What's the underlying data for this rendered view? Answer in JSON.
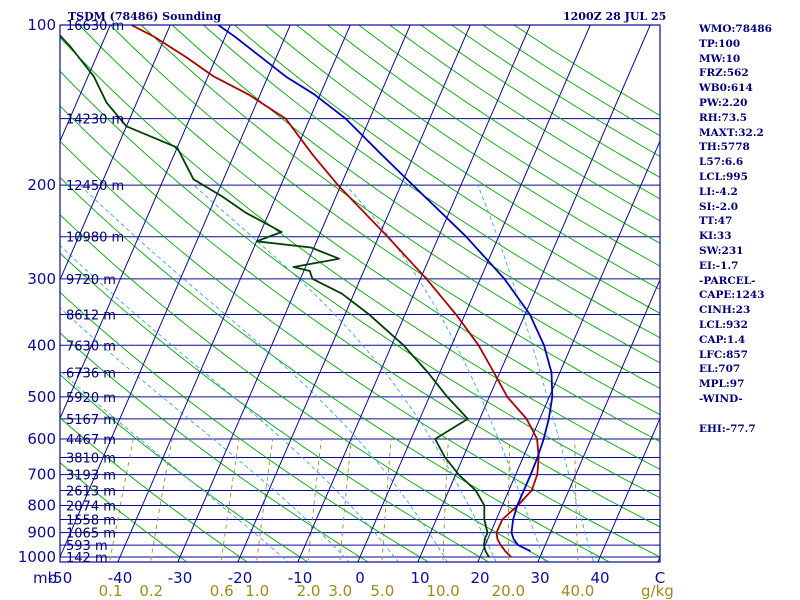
{
  "header": {
    "title": "TSDM (78486) Sounding",
    "time": "1200Z 28 JUL 25"
  },
  "indices": [
    "WMO:78486",
    "TP:100",
    "MW:10",
    "FRZ:562",
    "WB0:614",
    "PW:2.20",
    "RH:73.5",
    "MAXT:32.2",
    "TH:5778",
    "L57:6.6",
    "LCL:995",
    "LI:-4.2",
    "SI:-2.0",
    "TT:47",
    "KI:33",
    "SW:231",
    "EI:-1.7",
    "-PARCEL-",
    "CAPE:1243",
    "CINH:23",
    "LCL:932",
    "CAP:1.4",
    "LFC:857",
    "EL:707",
    "MPL:97",
    "-WIND-",
    "",
    "EHI:-77.7"
  ],
  "colors": {
    "frame": "#0a0a9a",
    "isobar": "#0a0a9a",
    "isotherm": "#0a0a9a",
    "dry_adiabat": "#00aa00",
    "moist_adiabat": "#3aa8d8",
    "mixing_ratio": "#a08a1a",
    "temperature": "#b00000",
    "dewpoint": "#004000",
    "parcel": "#0000c0"
  },
  "chart_data": {
    "type": "line",
    "title": "TSDM (78486) Sounding",
    "subtitle": "1200Z 28 JUL 25",
    "x_axis_unit_label": "mb",
    "mixing_ratio_unit": "g/kg",
    "pressure_ticks": [
      {
        "label": "100",
        "p": 100
      },
      {
        "label": "200",
        "p": 200
      },
      {
        "label": "300",
        "p": 300
      },
      {
        "label": "400",
        "p": 400
      },
      {
        "label": "500",
        "p": 500
      },
      {
        "label": "600",
        "p": 600
      },
      {
        "label": "700",
        "p": 700
      },
      {
        "label": "800",
        "p": 800
      },
      {
        "label": "900",
        "p": 900
      },
      {
        "label": "1000",
        "p": 1000
      }
    ],
    "height_labels": [
      {
        "p": 100,
        "label": "16630 m"
      },
      {
        "p": 150,
        "label": "14230 m"
      },
      {
        "p": 200,
        "label": "12450 m"
      },
      {
        "p": 250,
        "label": "10980 m"
      },
      {
        "p": 300,
        "label": "9720 m"
      },
      {
        "p": 350,
        "label": "8612 m"
      },
      {
        "p": 400,
        "label": "7630 m"
      },
      {
        "p": 450,
        "label": "6736 m"
      },
      {
        "p": 500,
        "label": "5920 m"
      },
      {
        "p": 550,
        "label": "5167 m"
      },
      {
        "p": 600,
        "label": "4467 m"
      },
      {
        "p": 650,
        "label": "3810 m"
      },
      {
        "p": 700,
        "label": "3193 m"
      },
      {
        "p": 750,
        "label": "2613 m"
      },
      {
        "p": 800,
        "label": "2074 m"
      },
      {
        "p": 850,
        "label": "1558 m"
      },
      {
        "p": 900,
        "label": "1065 m"
      },
      {
        "p": 950,
        "label": "593 m"
      },
      {
        "p": 1000,
        "label": "142 m"
      }
    ],
    "temperature_ticks": [
      {
        "label": "-50",
        "t": -50
      },
      {
        "label": "-40",
        "t": -40
      },
      {
        "label": "-30",
        "t": -30
      },
      {
        "label": "-20",
        "t": -20
      },
      {
        "label": "-10",
        "t": -10
      },
      {
        "label": "0",
        "t": 0
      },
      {
        "label": "10",
        "t": 10
      },
      {
        "label": "20",
        "t": 20
      },
      {
        "label": "30",
        "t": 30
      },
      {
        "label": "40",
        "t": 40
      },
      {
        "label": "C",
        "t": 50
      }
    ],
    "mixing_ratio_ticks": [
      {
        "label": "0.1",
        "w": 0.1
      },
      {
        "label": "0.2",
        "w": 0.2
      },
      {
        "label": "0.6",
        "w": 0.6
      },
      {
        "label": "1.0",
        "w": 1.0
      },
      {
        "label": "2.0",
        "w": 2.0
      },
      {
        "label": "3.0",
        "w": 3.0
      },
      {
        "label": "5.0",
        "w": 5.0
      },
      {
        "label": "10.0",
        "w": 10.0
      },
      {
        "label": "20.0",
        "w": 20.0
      },
      {
        "label": "40.0",
        "w": 40.0
      }
    ],
    "pressure_range_hpa": [
      100,
      1050
    ],
    "temperature_range_c_at_bottom": [
      -50,
      50
    ],
    "series": [
      {
        "key": "temperature",
        "points": [
          [
            1000,
            25.2
          ],
          [
            975,
            23.8
          ],
          [
            950,
            22.6
          ],
          [
            925,
            21.6
          ],
          [
            900,
            21.0
          ],
          [
            850,
            21.0
          ],
          [
            800,
            22.6
          ],
          [
            750,
            23.8
          ],
          [
            700,
            23.6
          ],
          [
            650,
            22.6
          ],
          [
            600,
            21.0
          ],
          [
            550,
            17.8
          ],
          [
            500,
            13.0
          ],
          [
            450,
            9.0
          ],
          [
            400,
            4.5
          ],
          [
            350,
            -1.5
          ],
          [
            300,
            -9.0
          ],
          [
            250,
            -18.5
          ],
          [
            200,
            -30.5
          ],
          [
            175,
            -37.0
          ],
          [
            150,
            -44.0
          ],
          [
            135,
            -52.0
          ],
          [
            125,
            -59.0
          ],
          [
            115,
            -65.0
          ],
          [
            105,
            -72.0
          ],
          [
            100,
            -76.5
          ]
        ]
      },
      {
        "key": "dewpoint",
        "points": [
          [
            1000,
            21.5
          ],
          [
            975,
            20.5
          ],
          [
            950,
            19.8
          ],
          [
            925,
            19.5
          ],
          [
            900,
            19.5
          ],
          [
            850,
            18.0
          ],
          [
            800,
            17.0
          ],
          [
            750,
            14.5
          ],
          [
            700,
            10.5
          ],
          [
            650,
            7.0
          ],
          [
            600,
            4.0
          ],
          [
            550,
            8.0
          ],
          [
            500,
            3.0
          ],
          [
            450,
            -2.0
          ],
          [
            400,
            -8.0
          ],
          [
            350,
            -16.0
          ],
          [
            320,
            -22.0
          ],
          [
            300,
            -28.0
          ],
          [
            290,
            -29.0
          ],
          [
            285,
            -32.0
          ],
          [
            275,
            -25.0
          ],
          [
            262,
            -30.5
          ],
          [
            255,
            -40.0
          ],
          [
            245,
            -36.5
          ],
          [
            225,
            -44.0
          ],
          [
            210,
            -49.0
          ],
          [
            195,
            -55.0
          ],
          [
            170,
            -60.0
          ],
          [
            155,
            -70.0
          ],
          [
            140,
            -75.0
          ],
          [
            125,
            -79.0
          ],
          [
            110,
            -85.0
          ],
          [
            100,
            -90.0
          ]
        ]
      },
      {
        "key": "parcel",
        "points": [
          [
            975,
            28.0
          ],
          [
            950,
            25.5
          ],
          [
            925,
            24.3
          ],
          [
            900,
            23.5
          ],
          [
            850,
            22.8
          ],
          [
            800,
            22.5
          ],
          [
            750,
            22.5
          ],
          [
            700,
            22.5
          ],
          [
            650,
            22.4
          ],
          [
            600,
            22.1
          ],
          [
            550,
            21.5
          ],
          [
            500,
            20.5
          ],
          [
            450,
            18.6
          ],
          [
            400,
            15.4
          ],
          [
            350,
            10.8
          ],
          [
            300,
            4.0
          ],
          [
            250,
            -5.4
          ],
          [
            200,
            -18.0
          ],
          [
            175,
            -25.5
          ],
          [
            150,
            -34.0
          ],
          [
            135,
            -41.0
          ],
          [
            125,
            -47.0
          ],
          [
            115,
            -52.5
          ],
          [
            105,
            -58.5
          ],
          [
            100,
            -62.0
          ]
        ]
      }
    ]
  }
}
